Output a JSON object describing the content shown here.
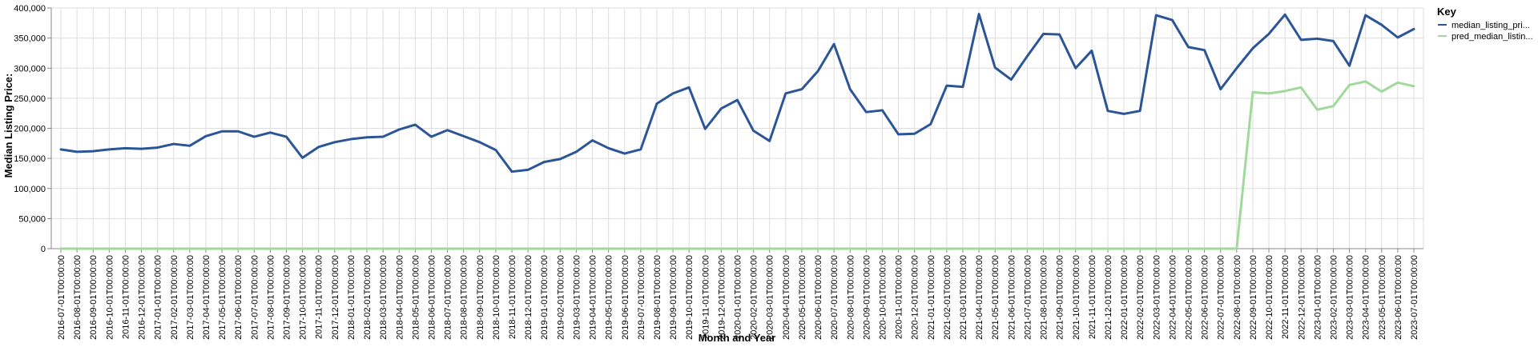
{
  "chart_data": {
    "type": "line",
    "xlabel": "Month and Year",
    "ylabel": "Median Listing Price:",
    "ylim": [
      0,
      400000
    ],
    "yticks": [
      "0",
      "50,000",
      "100,000",
      "150,000",
      "200,000",
      "250,000",
      "300,000",
      "350,000",
      "400,000"
    ],
    "grid": true,
    "legend": {
      "title": "Key",
      "placement": "top-right"
    },
    "x": [
      "2016-07-01T00:00:00",
      "2016-08-01T00:00:00",
      "2016-09-01T00:00:00",
      "2016-10-01T00:00:00",
      "2016-11-01T00:00:00",
      "2016-12-01T00:00:00",
      "2017-01-01T00:00:00",
      "2017-02-01T00:00:00",
      "2017-03-01T00:00:00",
      "2017-04-01T00:00:00",
      "2017-05-01T00:00:00",
      "2017-06-01T00:00:00",
      "2017-07-01T00:00:00",
      "2017-08-01T00:00:00",
      "2017-09-01T00:00:00",
      "2017-10-01T00:00:00",
      "2017-11-01T00:00:00",
      "2017-12-01T00:00:00",
      "2018-01-01T00:00:00",
      "2018-02-01T00:00:00",
      "2018-03-01T00:00:00",
      "2018-04-01T00:00:00",
      "2018-05-01T00:00:00",
      "2018-06-01T00:00:00",
      "2018-07-01T00:00:00",
      "2018-08-01T00:00:00",
      "2018-09-01T00:00:00",
      "2018-10-01T00:00:00",
      "2018-11-01T00:00:00",
      "2018-12-01T00:00:00",
      "2019-01-01T00:00:00",
      "2019-02-01T00:00:00",
      "2019-03-01T00:00:00",
      "2019-04-01T00:00:00",
      "2019-05-01T00:00:00",
      "2019-06-01T00:00:00",
      "2019-07-01T00:00:00",
      "2019-08-01T00:00:00",
      "2019-09-01T00:00:00",
      "2019-10-01T00:00:00",
      "2019-11-01T00:00:00",
      "2019-12-01T00:00:00",
      "2020-01-01T00:00:00",
      "2020-02-01T00:00:00",
      "2020-03-01T00:00:00",
      "2020-04-01T00:00:00",
      "2020-05-01T00:00:00",
      "2020-06-01T00:00:00",
      "2020-07-01T00:00:00",
      "2020-08-01T00:00:00",
      "2020-09-01T00:00:00",
      "2020-10-01T00:00:00",
      "2020-11-01T00:00:00",
      "2020-12-01T00:00:00",
      "2021-01-01T00:00:00",
      "2021-02-01T00:00:00",
      "2021-03-01T00:00:00",
      "2021-04-01T00:00:00",
      "2021-05-01T00:00:00",
      "2021-06-01T00:00:00",
      "2021-07-01T00:00:00",
      "2021-08-01T00:00:00",
      "2021-09-01T00:00:00",
      "2021-10-01T00:00:00",
      "2021-11-01T00:00:00",
      "2021-12-01T00:00:00",
      "2022-01-01T00:00:00",
      "2022-02-01T00:00:00",
      "2022-03-01T00:00:00",
      "2022-04-01T00:00:00",
      "2022-05-01T00:00:00",
      "2022-06-01T00:00:00",
      "2022-07-01T00:00:00",
      "2022-08-01T00:00:00",
      "2022-09-01T00:00:00",
      "2022-10-01T00:00:00",
      "2022-11-01T00:00:00",
      "2022-12-01T00:00:00",
      "2023-01-01T00:00:00",
      "2023-02-01T00:00:00",
      "2023-03-01T00:00:00",
      "2023-04-01T00:00:00",
      "2023-05-01T00:00:00",
      "2023-06-01T00:00:00",
      "2023-07-01T00:00:00"
    ],
    "series": [
      {
        "name": "median_listing_pri...",
        "color": "#2c5597",
        "values": [
          165000,
          161000,
          162000,
          165000,
          167000,
          166000,
          168000,
          174000,
          171000,
          187000,
          195000,
          195000,
          186000,
          193000,
          186000,
          151000,
          169000,
          177000,
          182000,
          185000,
          186000,
          198000,
          206000,
          186000,
          197000,
          187000,
          177000,
          164000,
          128000,
          131000,
          144000,
          149000,
          161000,
          180000,
          167000,
          158000,
          165000,
          241000,
          258000,
          268000,
          199000,
          233000,
          247000,
          196000,
          179000,
          258000,
          265000,
          295000,
          340000,
          265000,
          227000,
          230000,
          190000,
          191000,
          207000,
          271000,
          269000,
          390000,
          301000,
          281000,
          320000,
          357000,
          356000,
          300000,
          329000,
          229000,
          224000,
          229000,
          388000,
          380000,
          335000,
          330000,
          265000,
          300000,
          333000,
          357000,
          389000,
          347000,
          349000,
          345000,
          304000,
          388000,
          372000,
          351000,
          365000
        ]
      },
      {
        "name": "pred_median_listin...",
        "color": "#a1d99b",
        "values": [
          0,
          0,
          0,
          0,
          0,
          0,
          0,
          0,
          0,
          0,
          0,
          0,
          0,
          0,
          0,
          0,
          0,
          0,
          0,
          0,
          0,
          0,
          0,
          0,
          0,
          0,
          0,
          0,
          0,
          0,
          0,
          0,
          0,
          0,
          0,
          0,
          0,
          0,
          0,
          0,
          0,
          0,
          0,
          0,
          0,
          0,
          0,
          0,
          0,
          0,
          0,
          0,
          0,
          0,
          0,
          0,
          0,
          0,
          0,
          0,
          0,
          0,
          0,
          0,
          0,
          0,
          0,
          0,
          0,
          0,
          0,
          0,
          0,
          0,
          260000,
          258000,
          262000,
          268000,
          231000,
          237000,
          272000,
          278000,
          261000,
          276000,
          270000
        ]
      }
    ]
  }
}
